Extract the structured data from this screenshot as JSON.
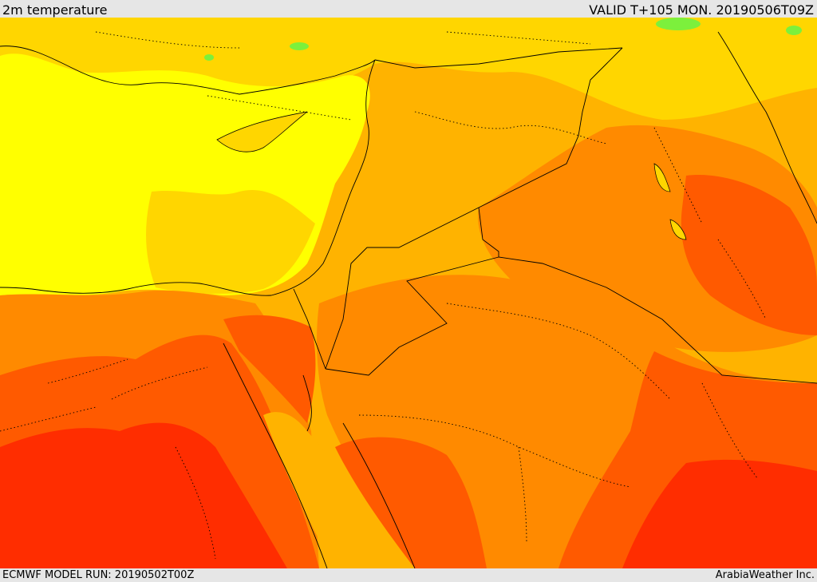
{
  "header": {
    "title": "2m temperature",
    "valid": "VALID T+105 MON. 20190506T09Z"
  },
  "footer": {
    "model_run": "ECMWF MODEL RUN: 20190502T00Z",
    "credit": "ArabiaWeather Inc."
  },
  "palette": {
    "cool_green": "#7cf03c",
    "yellow": "#ffff00",
    "light_orange": "#ffd600",
    "orange": "#ffb300",
    "dark_orange": "#ff8a00",
    "red_orange": "#ff5a00",
    "red": "#ff2d00"
  }
}
